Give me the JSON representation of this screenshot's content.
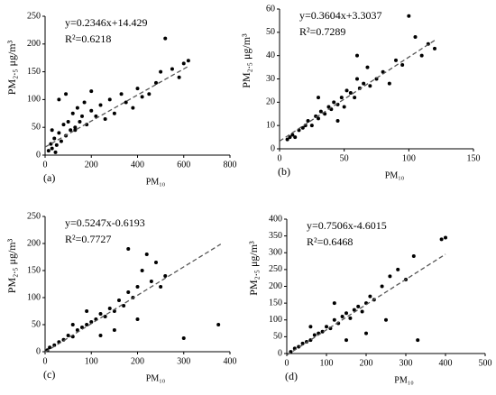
{
  "chart_data": [
    {
      "type": "scatter",
      "panel_label": "(a)",
      "xlabel": "PM₁₀",
      "ylabel": "PM₂.₅ μg/m³",
      "annotations": [
        "y=0.2346x+14.429",
        "R²=0.6218"
      ],
      "xlim": [
        0,
        800
      ],
      "xticks": [
        0,
        200,
        400,
        600,
        800
      ],
      "ylim": [
        0,
        250
      ],
      "yticks": [
        0,
        50,
        100,
        150,
        200,
        250
      ],
      "color": "#000000",
      "trend": {
        "slope": 0.2346,
        "intercept": 14.429,
        "x_range": [
          0,
          620
        ]
      },
      "x": [
        15,
        25,
        30,
        40,
        50,
        60,
        70,
        80,
        90,
        100,
        110,
        120,
        130,
        140,
        150,
        160,
        170,
        180,
        200,
        220,
        240,
        260,
        280,
        300,
        330,
        350,
        380,
        400,
        420,
        450,
        480,
        500,
        520,
        550,
        580,
        600,
        620,
        60,
        90,
        130,
        30,
        45,
        200
      ],
      "values": [
        8,
        20,
        12,
        30,
        18,
        40,
        25,
        55,
        35,
        60,
        45,
        75,
        50,
        85,
        60,
        70,
        95,
        55,
        80,
        70,
        90,
        65,
        100,
        75,
        110,
        95,
        85,
        120,
        105,
        110,
        130,
        150,
        210,
        155,
        140,
        165,
        170,
        100,
        110,
        45,
        45,
        5,
        115
      ]
    },
    {
      "type": "scatter",
      "panel_label": "(b)",
      "xlabel": "PM₁₀",
      "ylabel": "PM₂.₅ μg/m³",
      "annotations": [
        "y=0.3604x+3.3037",
        "R²=0.7289"
      ],
      "xlim": [
        0,
        150
      ],
      "xticks": [
        0,
        50,
        100,
        150
      ],
      "ylim": [
        0,
        60
      ],
      "yticks": [
        0,
        10,
        20,
        30,
        40,
        50,
        60
      ],
      "color": "#000000",
      "trend": {
        "slope": 0.3604,
        "intercept": 3.3037,
        "x_range": [
          0,
          120
        ]
      },
      "x": [
        6,
        8,
        10,
        12,
        15,
        18,
        20,
        22,
        25,
        28,
        30,
        32,
        35,
        38,
        40,
        42,
        45,
        48,
        50,
        52,
        55,
        58,
        60,
        62,
        65,
        68,
        70,
        75,
        80,
        85,
        90,
        95,
        100,
        105,
        110,
        115,
        120,
        30,
        45,
        60
      ],
      "values": [
        4,
        5,
        6,
        5,
        8,
        9,
        10,
        12,
        10,
        14,
        13,
        16,
        15,
        18,
        17,
        20,
        19,
        22,
        18,
        25,
        24,
        22,
        30,
        26,
        28,
        35,
        27,
        30,
        33,
        28,
        38,
        36,
        57,
        48,
        40,
        45,
        43,
        22,
        12,
        40
      ]
    },
    {
      "type": "scatter",
      "panel_label": "(c)",
      "xlabel": "PM₁₀",
      "ylabel": "PM₂.₅ μg/m³",
      "annotations": [
        "y=0.5247x-0.6193",
        "R²=0.7727"
      ],
      "xlim": [
        0,
        400
      ],
      "xticks": [
        0,
        100,
        200,
        300,
        400
      ],
      "ylim": [
        0,
        250
      ],
      "yticks": [
        0,
        50,
        100,
        150,
        200,
        250
      ],
      "color": "#000000",
      "trend": {
        "slope": 0.5247,
        "intercept": -0.6193,
        "x_range": [
          0,
          380
        ]
      },
      "x": [
        5,
        10,
        20,
        30,
        40,
        50,
        60,
        70,
        80,
        90,
        100,
        110,
        120,
        130,
        140,
        150,
        160,
        170,
        180,
        190,
        200,
        210,
        220,
        230,
        240,
        250,
        260,
        120,
        150,
        200,
        300,
        375,
        60,
        90,
        180
      ],
      "values": [
        3,
        8,
        12,
        18,
        22,
        30,
        28,
        40,
        45,
        50,
        55,
        60,
        70,
        65,
        80,
        75,
        95,
        85,
        110,
        100,
        120,
        150,
        180,
        130,
        165,
        120,
        140,
        30,
        40,
        60,
        25,
        50,
        50,
        75,
        190
      ]
    },
    {
      "type": "scatter",
      "panel_label": "(d)",
      "xlabel": "PM₁₀",
      "ylabel": "PM₂.₅ μg/m³",
      "annotations": [
        "y=0.7506x-4.6015",
        "R²=0.6468"
      ],
      "xlim": [
        0,
        500
      ],
      "xticks": [
        0,
        100,
        200,
        300,
        400,
        500
      ],
      "ylim": [
        0,
        400
      ],
      "yticks": [
        0,
        50,
        100,
        150,
        200,
        250,
        300,
        350,
        400
      ],
      "color": "#000000",
      "trend": {
        "slope": 0.7506,
        "intercept": -4.6015,
        "x_range": [
          0,
          400
        ]
      },
      "x": [
        10,
        20,
        30,
        40,
        50,
        60,
        70,
        80,
        90,
        100,
        110,
        120,
        130,
        140,
        150,
        160,
        170,
        180,
        190,
        200,
        210,
        220,
        240,
        260,
        280,
        300,
        320,
        330,
        390,
        400,
        150,
        200,
        120,
        250,
        60
      ],
      "values": [
        5,
        15,
        20,
        30,
        35,
        40,
        55,
        60,
        65,
        80,
        75,
        100,
        90,
        110,
        120,
        105,
        130,
        140,
        125,
        150,
        170,
        160,
        200,
        230,
        250,
        220,
        290,
        40,
        340,
        345,
        40,
        60,
        150,
        100,
        80
      ]
    }
  ]
}
